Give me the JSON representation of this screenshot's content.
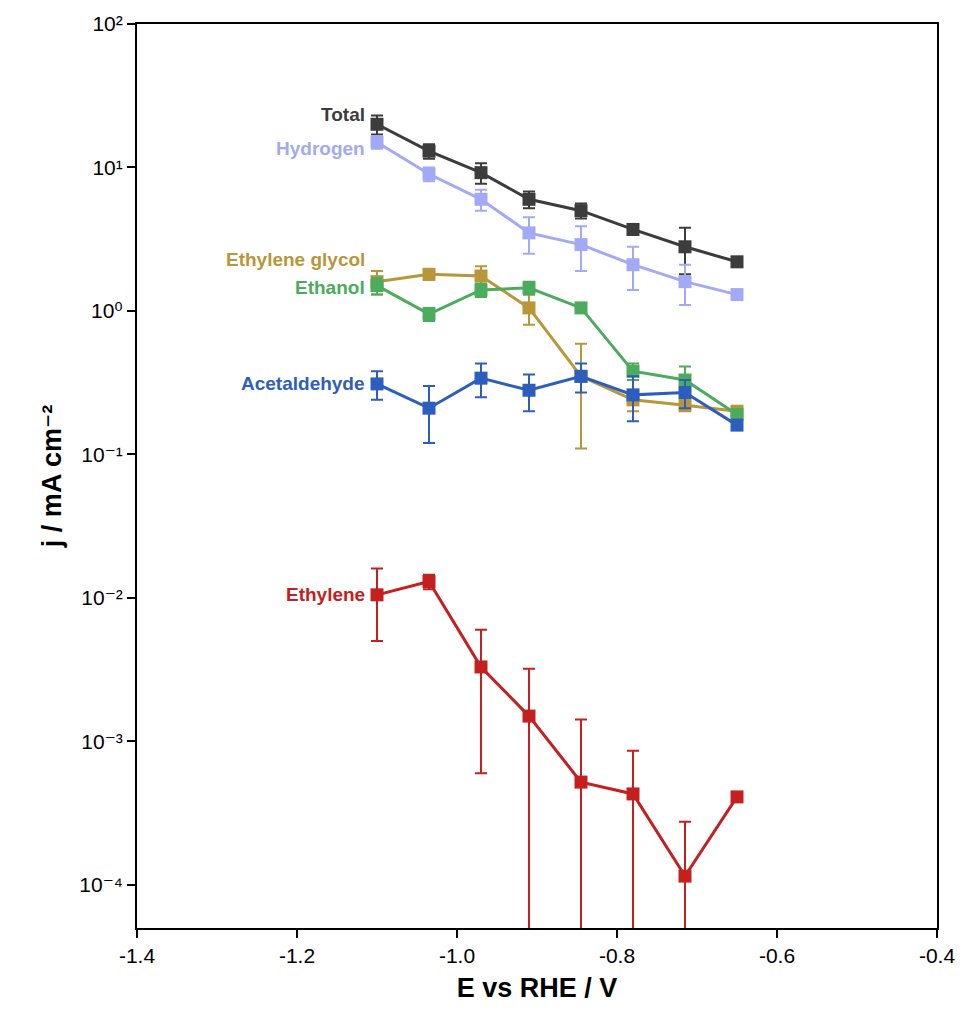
{
  "chart_data": {
    "type": "line",
    "x_label": "E vs RHE / V",
    "y_label": "j / mA cm⁻²",
    "log": "y",
    "grid": false,
    "marker": "square",
    "xlim": [
      -1.4,
      -0.4
    ],
    "xticks": [
      -1.4,
      -1.2,
      {
        "value": -1,
        "label": "-1.0"
      },
      -0.8,
      -0.6,
      -0.4
    ],
    "ylim": [
      5e-05,
      100
    ],
    "yticks": [
      {
        "value": 0.0001,
        "label": "10⁻⁴"
      },
      {
        "value": 0.001,
        "label": "10⁻³"
      },
      {
        "value": 0.01,
        "label": "10⁻²"
      },
      {
        "value": 0.1,
        "label": "10⁻¹"
      },
      {
        "value": 1,
        "label": "10⁰"
      },
      {
        "value": 10,
        "label": "10¹"
      },
      {
        "value": 100,
        "label": "10²"
      }
    ],
    "x": [
      -1.1,
      -1.035,
      -0.97,
      -0.91,
      -0.845,
      -0.78,
      -0.715,
      -0.65
    ],
    "series": [
      {
        "name": "Total",
        "color": "#3c3c3c",
        "values": [
          20,
          13,
          9.2,
          6,
          5,
          3.7,
          2.8,
          2.2
        ],
        "errors": [
          3,
          1.5,
          1.5,
          0.8,
          0.6,
          0.3,
          1.0,
          0
        ]
      },
      {
        "name": "Hydrogen",
        "color": "#a3aaf5",
        "values": [
          15,
          9,
          6,
          3.5,
          2.9,
          2.1,
          1.6,
          1.3
        ],
        "errors": [
          1.5,
          1,
          1,
          1,
          1,
          0.7,
          0.5,
          0.1
        ]
      },
      {
        "name": "Ethylene glycol",
        "color": "#b8963a",
        "values": [
          1.6,
          1.8,
          1.75,
          1.05,
          0.35,
          0.24,
          0.22,
          0.2
        ],
        "errors": [
          0.3,
          0.15,
          0.3,
          0.25,
          0.24,
          0.04,
          0.02,
          0
        ]
      },
      {
        "name": "Ethanol",
        "color": "#4cab5c",
        "values": [
          1.5,
          0.95,
          1.4,
          1.45,
          1.05,
          0.38,
          0.33,
          0.19
        ],
        "errors": [
          0.2,
          0.1,
          0.15,
          0.15,
          0.07,
          0.05,
          0.08,
          0
        ]
      },
      {
        "name": "Acetaldehyde",
        "color": "#2d5ebd",
        "values": [
          0.31,
          0.21,
          0.34,
          0.28,
          0.35,
          0.26,
          0.27,
          0.16
        ],
        "errors": [
          0.07,
          0.09,
          0.09,
          0.08,
          0.08,
          0.09,
          0.06,
          0
        ]
      },
      {
        "name": "Ethylene",
        "color": "#c42020",
        "values": [
          0.0105,
          0.013,
          0.0033,
          0.0015,
          0.00052,
          0.00043,
          0.000115,
          0.00041
        ],
        "errors": [
          0.0055,
          0.0015,
          0.0027,
          0.0017,
          0.0009,
          0.00043,
          0.00016,
          0
        ]
      }
    ]
  }
}
